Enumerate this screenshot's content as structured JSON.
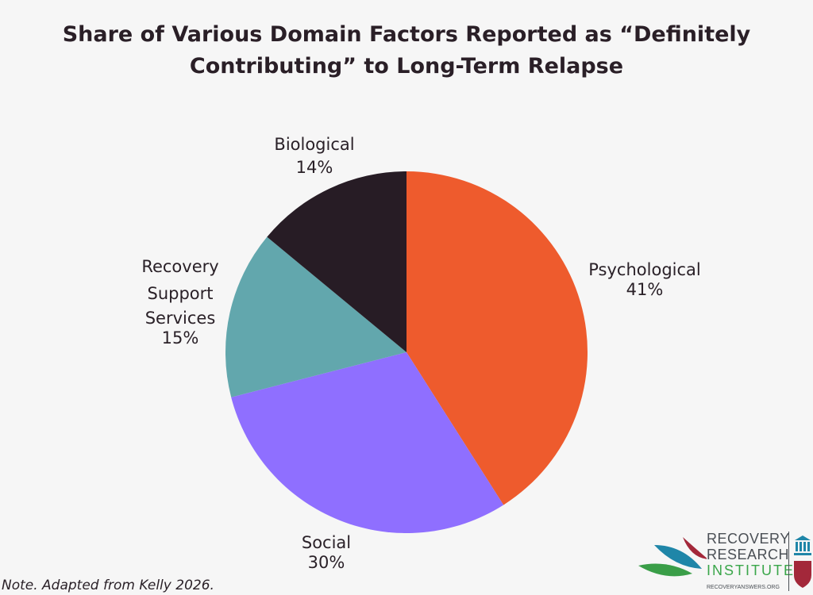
{
  "chart_data": {
    "type": "pie",
    "title": [
      "Share of Various Domain Factors Reported as “Definitely",
      "Contributing” to Long-Term Relapse"
    ],
    "slices": [
      {
        "label": [
          "Psychological"
        ],
        "value": 41,
        "value_label": "41%",
        "color": "#EE5B2D"
      },
      {
        "label": [
          "Social"
        ],
        "value": 30,
        "value_label": "30%",
        "color": "#8F6FFF"
      },
      {
        "label": [
          "Recovery",
          "Support",
          "Services"
        ],
        "value": 15,
        "value_label": "15%",
        "color": "#62A7AD"
      },
      {
        "label": [
          "Biological"
        ],
        "value": 14,
        "value_label": "14%",
        "color": "#271C25"
      }
    ],
    "start": "top",
    "direction": "clockwise"
  },
  "note": "Note. Adapted from Kelly 2026.",
  "logo": {
    "line1": "RECOVERY",
    "line2": "RESEARCH",
    "line3": "INSTITUTE",
    "url": "RECOVERYANSWERS.ORG"
  }
}
